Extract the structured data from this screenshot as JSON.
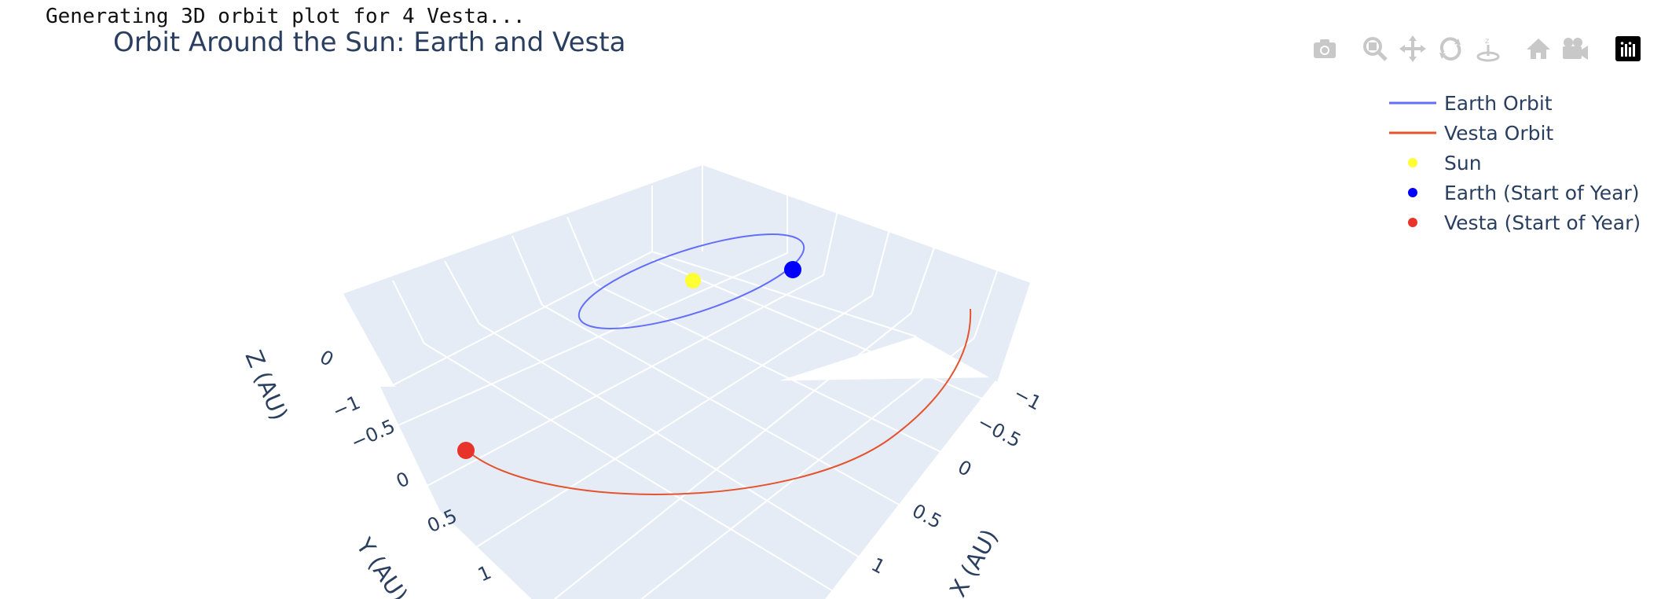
{
  "console": {
    "message": "Generating 3D orbit plot for 4 Vesta..."
  },
  "chart_data": {
    "type": "scatter3d",
    "title": "Orbit Around the Sun: Earth and Vesta",
    "axes": {
      "x": {
        "label": "X (AU)",
        "ticks": [
          "−1",
          "−0.5",
          "0",
          "0.5",
          "1"
        ]
      },
      "y": {
        "label": "Y (AU)",
        "ticks": [
          "−1",
          "−0.5",
          "0",
          "0.5",
          "1"
        ]
      },
      "z": {
        "label": "Z (AU)",
        "ticks": [
          "0"
        ]
      }
    },
    "grid": true,
    "legend_position": "top-right",
    "series": [
      {
        "name": "Earth Orbit",
        "mode": "line",
        "color": "#636efa",
        "shape": "circle-orbit",
        "radius_au": 1.0
      },
      {
        "name": "Vesta Orbit",
        "mode": "line",
        "color": "#e4542e",
        "shape": "partial-arc"
      },
      {
        "name": "Sun",
        "mode": "marker",
        "color": "#ffff33",
        "x": 0,
        "y": 0,
        "z": 0
      },
      {
        "name": "Earth (Start of Year)",
        "mode": "marker",
        "color": "#0000ff",
        "x": -0.17,
        "y": 0.98,
        "z": 0
      },
      {
        "name": "Vesta (Start of Year)",
        "mode": "marker",
        "color": "#e8332a"
      }
    ]
  },
  "modebar": {
    "icons": [
      "camera-icon",
      "zoom-icon",
      "pan-icon",
      "orbit-rotation-icon",
      "turntable-rotation-icon",
      "home-icon",
      "camera-view-icon",
      "plotly-logo-icon"
    ]
  }
}
